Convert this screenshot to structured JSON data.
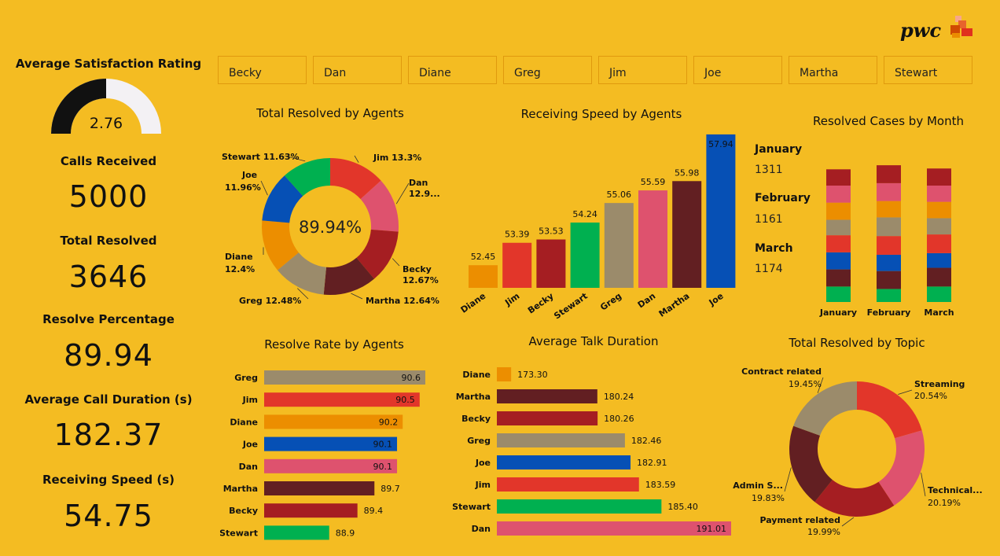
{
  "logo_text": "pwc",
  "colors": {
    "Becky": "#A51E22",
    "Dan": "#DE526E",
    "Diane": "#EC8E00",
    "Greg": "#9B8B6B",
    "Jim": "#E2362A",
    "Joe": "#0650B5",
    "Martha": "#621F22",
    "Stewart": "#00B050",
    "gauge_fill": "#111111",
    "gauge_bg": "#F3F1F4"
  },
  "kpis": {
    "satisfaction_title": "Average Satisfaction Rating",
    "satisfaction_value": "2.76",
    "satisfaction_fraction": 0.5,
    "calls_title": "Calls Received",
    "calls_value": "5000",
    "resolved_title": "Total Resolved",
    "resolved_value": "3646",
    "percent_title": "Resolve Percentage",
    "percent_value": "89.94",
    "duration_title": "Average Call Duration (s)",
    "duration_value": "182.37",
    "speed_title": "Receiving Speed (s)",
    "speed_value": "54.75"
  },
  "slicers": [
    "Becky",
    "Dan",
    "Diane",
    "Greg",
    "Jim",
    "Joe",
    "Martha",
    "Stewart"
  ],
  "chart_data": [
    {
      "id": "total_resolved_agents",
      "type": "pie",
      "title": "Total Resolved by Agents",
      "center_label": "89.94%",
      "labels": [
        "Jim",
        "Dan",
        "Becky",
        "Martha",
        "Greg",
        "Diane",
        "Joe",
        "Stewart"
      ],
      "values": [
        13.3,
        12.9,
        12.67,
        12.64,
        12.48,
        12.4,
        11.96,
        11.63
      ],
      "value_labels": [
        "Jim 13.3%",
        "Dan 12.9...",
        "Becky 12.67%",
        "Martha 12.64%",
        "Greg 12.48%",
        "Diane 12.4%",
        "Joe 11.96%",
        "Stewart 11.63%"
      ]
    },
    {
      "id": "receiving_speed_agents",
      "type": "bar",
      "title": "Receiving Speed by Agents",
      "categories": [
        "Diane",
        "Jim",
        "Becky",
        "Stewart",
        "Greg",
        "Dan",
        "Martha",
        "Joe"
      ],
      "values": [
        52.45,
        53.39,
        53.53,
        54.24,
        55.06,
        55.59,
        55.98,
        57.94
      ],
      "value_labels": [
        "52.45",
        "53.39",
        "53.53",
        "54.24",
        "55.06",
        "55.59",
        "55.98",
        "57.94"
      ],
      "ylim": [
        51.5,
        58.3
      ]
    },
    {
      "id": "resolved_by_month",
      "type": "bar",
      "title": "Resolved Cases by Month",
      "categories": [
        "January",
        "February",
        "March"
      ],
      "totals": [
        "1311",
        "1161",
        "1174"
      ],
      "series": [
        {
          "name": "Stewart",
          "values": [
            0.095,
            0.08,
            0.095
          ]
        },
        {
          "name": "Martha",
          "values": [
            0.105,
            0.11,
            0.115
          ]
        },
        {
          "name": "Joe",
          "values": [
            0.105,
            0.1,
            0.09
          ]
        },
        {
          "name": "Jim",
          "values": [
            0.105,
            0.115,
            0.115
          ]
        },
        {
          "name": "Greg",
          "values": [
            0.095,
            0.115,
            0.1
          ]
        },
        {
          "name": "Diane",
          "values": [
            0.105,
            0.1,
            0.1
          ]
        },
        {
          "name": "Dan",
          "values": [
            0.105,
            0.11,
            0.1
          ]
        },
        {
          "name": "Becky",
          "values": [
            0.1,
            0.11,
            0.105
          ]
        }
      ]
    },
    {
      "id": "resolve_rate_agents",
      "type": "bar",
      "orientation": "horizontal",
      "title": "Resolve Rate by Agents",
      "categories": [
        "Greg",
        "Jim",
        "Diane",
        "Joe",
        "Dan",
        "Martha",
        "Becky",
        "Stewart"
      ],
      "values": [
        90.6,
        90.5,
        90.2,
        90.1,
        90.1,
        89.7,
        89.4,
        88.9
      ],
      "value_labels": [
        "90.6",
        "90.5",
        "90.2",
        "90.1",
        "90.1",
        "89.7",
        "89.4",
        "88.9"
      ],
      "xlim": [
        87.75,
        90.6
      ]
    },
    {
      "id": "avg_talk_duration",
      "type": "bar",
      "orientation": "horizontal",
      "title": "Average Talk Duration",
      "categories": [
        "Diane",
        "Martha",
        "Becky",
        "Greg",
        "Joe",
        "Jim",
        "Stewart",
        "Dan"
      ],
      "values": [
        173.3,
        180.24,
        180.26,
        182.46,
        182.91,
        183.59,
        185.4,
        191.01
      ],
      "value_labels": [
        "173.30",
        "180.24",
        "180.26",
        "182.46",
        "182.91",
        "183.59",
        "185.40",
        "191.01"
      ],
      "xlim": [
        172.15,
        191.01
      ]
    },
    {
      "id": "resolved_by_topic",
      "type": "pie",
      "title": "Total Resolved by Topic",
      "labels": [
        "Streaming",
        "Technical...",
        "Payment related",
        "Admin S...",
        "Contract related"
      ],
      "values": [
        20.54,
        20.19,
        19.99,
        19.83,
        19.45
      ],
      "value_labels": [
        "20.54%",
        "20.19%",
        "19.99%",
        "19.83%",
        "19.45%"
      ],
      "colors": [
        "#E2362A",
        "#DE526E",
        "#A51E22",
        "#621F22",
        "#9B8B6B"
      ]
    }
  ]
}
